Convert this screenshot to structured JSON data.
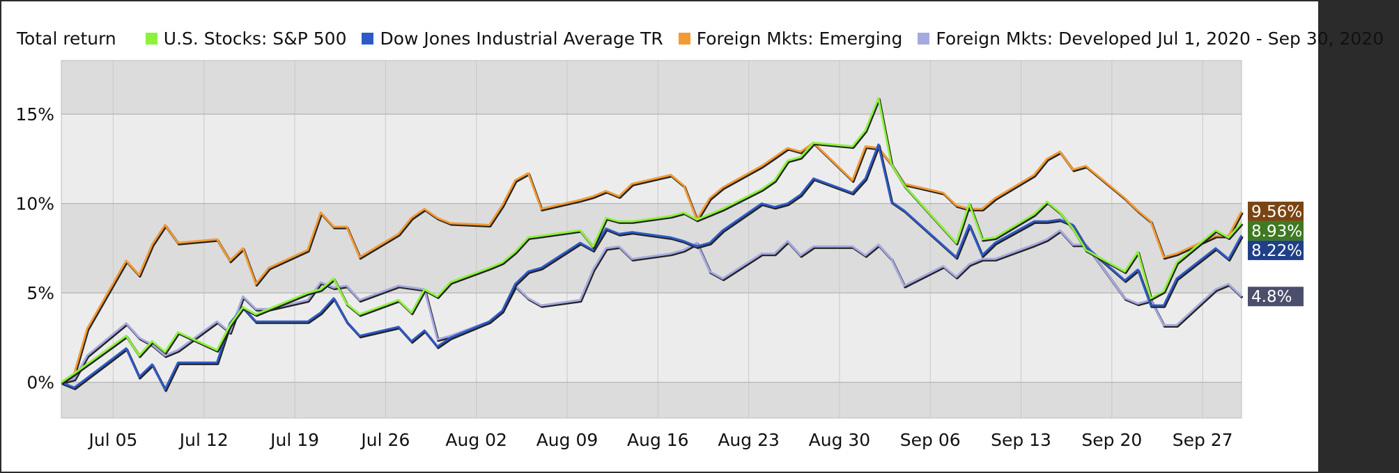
{
  "chart_data": {
    "type": "line",
    "title": "Total return",
    "date_range": "Jul 1, 2020 - Sep 30, 2020",
    "xlim": [
      "2020-07-01",
      "2020-09-30"
    ],
    "ylim": [
      -2,
      18
    ],
    "y_ticks": [
      0,
      5,
      10,
      15
    ],
    "y_tick_labels": [
      "0%",
      "5%",
      "10%",
      "15%"
    ],
    "x_tick_labels": [
      "Jul 05",
      "Jul 12",
      "Jul 19",
      "Jul 26",
      "Aug 02",
      "Aug 09",
      "Aug 16",
      "Aug 23",
      "Aug 30",
      "Sep 06",
      "Sep 13",
      "Sep 20",
      "Sep 27"
    ],
    "x_ticks": [
      "2020-07-05",
      "2020-07-12",
      "2020-07-19",
      "2020-07-26",
      "2020-08-02",
      "2020-08-09",
      "2020-08-16",
      "2020-08-23",
      "2020-08-30",
      "2020-09-06",
      "2020-09-13",
      "2020-09-20",
      "2020-09-27"
    ],
    "background_bands": "alternating grey every 5%",
    "grid": true,
    "legend_position": "top",
    "series": [
      {
        "name": "U.S. Stocks: S&P 500",
        "color": "#8ef23c",
        "end_label": "8.93%",
        "end_label_color": "#3f7a22",
        "x": [
          "2020-07-01",
          "2020-07-02",
          "2020-07-06",
          "2020-07-07",
          "2020-07-08",
          "2020-07-09",
          "2020-07-10",
          "2020-07-13",
          "2020-07-14",
          "2020-07-15",
          "2020-07-16",
          "2020-07-17",
          "2020-07-20",
          "2020-07-21",
          "2020-07-22",
          "2020-07-23",
          "2020-07-24",
          "2020-07-27",
          "2020-07-28",
          "2020-07-29",
          "2020-07-30",
          "2020-07-31",
          "2020-08-03",
          "2020-08-04",
          "2020-08-05",
          "2020-08-06",
          "2020-08-07",
          "2020-08-10",
          "2020-08-11",
          "2020-08-12",
          "2020-08-13",
          "2020-08-14",
          "2020-08-17",
          "2020-08-18",
          "2020-08-19",
          "2020-08-20",
          "2020-08-21",
          "2020-08-24",
          "2020-08-25",
          "2020-08-26",
          "2020-08-27",
          "2020-08-28",
          "2020-08-31",
          "2020-09-01",
          "2020-09-02",
          "2020-09-03",
          "2020-09-04",
          "2020-09-08",
          "2020-09-09",
          "2020-09-10",
          "2020-09-11",
          "2020-09-14",
          "2020-09-15",
          "2020-09-16",
          "2020-09-17",
          "2020-09-18",
          "2020-09-21",
          "2020-09-22",
          "2020-09-23",
          "2020-09-24",
          "2020-09-25",
          "2020-09-28",
          "2020-09-29",
          "2020-09-30"
        ],
        "values": [
          0,
          0.5,
          2.6,
          1.5,
          2.3,
          1.7,
          2.8,
          1.8,
          3.2,
          4.2,
          3.8,
          4.1,
          5.0,
          5.2,
          5.8,
          4.4,
          3.8,
          4.6,
          3.9,
          5.2,
          4.8,
          5.6,
          6.4,
          6.7,
          7.3,
          8.1,
          8.2,
          8.5,
          7.6,
          9.2,
          9.0,
          9.0,
          9.3,
          9.5,
          9.1,
          9.4,
          9.7,
          10.8,
          11.3,
          12.4,
          12.6,
          13.4,
          13.2,
          14.1,
          15.9,
          12.2,
          11.0,
          7.8,
          10.0,
          8.0,
          8.1,
          9.4,
          10.1,
          9.5,
          8.6,
          7.4,
          6.2,
          7.3,
          4.7,
          5.1,
          6.7,
          8.5,
          8.1,
          8.93
        ]
      },
      {
        "name": "Dow Jones Industrial Average TR",
        "color": "#2e59c8",
        "end_label": "8.22%",
        "end_label_color": "#1f3f87",
        "x": [
          "2020-07-01",
          "2020-07-02",
          "2020-07-06",
          "2020-07-07",
          "2020-07-08",
          "2020-07-09",
          "2020-07-10",
          "2020-07-13",
          "2020-07-14",
          "2020-07-15",
          "2020-07-16",
          "2020-07-17",
          "2020-07-20",
          "2020-07-21",
          "2020-07-22",
          "2020-07-23",
          "2020-07-24",
          "2020-07-27",
          "2020-07-28",
          "2020-07-29",
          "2020-07-30",
          "2020-07-31",
          "2020-08-03",
          "2020-08-04",
          "2020-08-05",
          "2020-08-06",
          "2020-08-07",
          "2020-08-10",
          "2020-08-11",
          "2020-08-12",
          "2020-08-13",
          "2020-08-14",
          "2020-08-17",
          "2020-08-18",
          "2020-08-19",
          "2020-08-20",
          "2020-08-21",
          "2020-08-24",
          "2020-08-25",
          "2020-08-26",
          "2020-08-27",
          "2020-08-28",
          "2020-08-31",
          "2020-09-01",
          "2020-09-02",
          "2020-09-03",
          "2020-09-04",
          "2020-09-08",
          "2020-09-09",
          "2020-09-10",
          "2020-09-11",
          "2020-09-14",
          "2020-09-15",
          "2020-09-16",
          "2020-09-17",
          "2020-09-18",
          "2020-09-21",
          "2020-09-22",
          "2020-09-23",
          "2020-09-24",
          "2020-09-25",
          "2020-09-28",
          "2020-09-29",
          "2020-09-30"
        ],
        "values": [
          0,
          -0.3,
          1.9,
          0.3,
          1.0,
          -0.4,
          1.1,
          1.1,
          3.3,
          4.2,
          3.4,
          3.4,
          3.4,
          3.9,
          4.7,
          3.4,
          2.6,
          3.1,
          2.3,
          2.9,
          2.0,
          2.5,
          3.4,
          4.0,
          5.5,
          6.2,
          6.4,
          7.8,
          7.4,
          8.6,
          8.3,
          8.4,
          8.1,
          7.9,
          7.6,
          7.8,
          8.5,
          10.0,
          9.8,
          10.0,
          10.5,
          11.4,
          10.6,
          11.4,
          13.3,
          10.1,
          9.6,
          7.0,
          8.8,
          7.1,
          7.8,
          9.0,
          9.0,
          9.1,
          8.8,
          7.6,
          5.7,
          6.3,
          4.3,
          4.3,
          5.8,
          7.5,
          6.9,
          8.22
        ]
      },
      {
        "name": "Foreign Mkts: Emerging",
        "color": "#f39a33",
        "end_label": "9.56%",
        "end_label_color": "#7b4513",
        "x": [
          "2020-07-01",
          "2020-07-02",
          "2020-07-03",
          "2020-07-06",
          "2020-07-07",
          "2020-07-08",
          "2020-07-09",
          "2020-07-10",
          "2020-07-13",
          "2020-07-14",
          "2020-07-15",
          "2020-07-16",
          "2020-07-17",
          "2020-07-20",
          "2020-07-21",
          "2020-07-22",
          "2020-07-23",
          "2020-07-24",
          "2020-07-27",
          "2020-07-28",
          "2020-07-29",
          "2020-07-30",
          "2020-07-31",
          "2020-08-03",
          "2020-08-04",
          "2020-08-05",
          "2020-08-06",
          "2020-08-07",
          "2020-08-10",
          "2020-08-11",
          "2020-08-12",
          "2020-08-13",
          "2020-08-14",
          "2020-08-17",
          "2020-08-18",
          "2020-08-19",
          "2020-08-20",
          "2020-08-21",
          "2020-08-24",
          "2020-08-25",
          "2020-08-26",
          "2020-08-27",
          "2020-08-28",
          "2020-08-31",
          "2020-09-01",
          "2020-09-02",
          "2020-09-03",
          "2020-09-04",
          "2020-09-07",
          "2020-09-08",
          "2020-09-09",
          "2020-09-10",
          "2020-09-11",
          "2020-09-14",
          "2020-09-15",
          "2020-09-16",
          "2020-09-17",
          "2020-09-18",
          "2020-09-21",
          "2020-09-22",
          "2020-09-23",
          "2020-09-24",
          "2020-09-25",
          "2020-09-28",
          "2020-09-29",
          "2020-09-30"
        ],
        "values": [
          0,
          0.5,
          3.0,
          6.8,
          6.0,
          7.7,
          8.8,
          7.8,
          8.0,
          6.8,
          7.5,
          5.5,
          6.4,
          7.4,
          9.5,
          8.7,
          8.7,
          7.0,
          8.3,
          9.2,
          9.7,
          9.2,
          8.9,
          8.8,
          9.9,
          11.3,
          11.7,
          9.7,
          10.2,
          10.4,
          10.7,
          10.4,
          11.1,
          11.6,
          11.0,
          9.1,
          10.3,
          10.9,
          12.1,
          12.6,
          13.1,
          12.9,
          13.4,
          11.3,
          13.2,
          13.1,
          12.2,
          11.1,
          10.6,
          9.9,
          9.7,
          9.7,
          10.3,
          11.6,
          12.5,
          12.9,
          11.9,
          12.1,
          10.3,
          9.6,
          9.0,
          7.0,
          7.2,
          8.2,
          8.2,
          9.56
        ]
      },
      {
        "name": "Foreign Mkts: Developed",
        "color": "#a6a9e0",
        "end_label": "4.8%",
        "end_label_color": "#4c4f6b",
        "x": [
          "2020-07-01",
          "2020-07-02",
          "2020-07-03",
          "2020-07-06",
          "2020-07-07",
          "2020-07-08",
          "2020-07-09",
          "2020-07-10",
          "2020-07-13",
          "2020-07-14",
          "2020-07-15",
          "2020-07-16",
          "2020-07-17",
          "2020-07-20",
          "2020-07-21",
          "2020-07-22",
          "2020-07-23",
          "2020-07-24",
          "2020-07-27",
          "2020-07-28",
          "2020-07-29",
          "2020-07-30",
          "2020-07-31",
          "2020-08-03",
          "2020-08-04",
          "2020-08-05",
          "2020-08-06",
          "2020-08-07",
          "2020-08-10",
          "2020-08-11",
          "2020-08-12",
          "2020-08-13",
          "2020-08-14",
          "2020-08-17",
          "2020-08-18",
          "2020-08-19",
          "2020-08-20",
          "2020-08-21",
          "2020-08-24",
          "2020-08-25",
          "2020-08-26",
          "2020-08-27",
          "2020-08-28",
          "2020-08-31",
          "2020-09-01",
          "2020-09-02",
          "2020-09-03",
          "2020-09-04",
          "2020-09-07",
          "2020-09-08",
          "2020-09-09",
          "2020-09-10",
          "2020-09-11",
          "2020-09-14",
          "2020-09-15",
          "2020-09-16",
          "2020-09-17",
          "2020-09-18",
          "2020-09-21",
          "2020-09-22",
          "2020-09-23",
          "2020-09-24",
          "2020-09-25",
          "2020-09-28",
          "2020-09-29",
          "2020-09-30"
        ],
        "values": [
          0,
          0.2,
          1.5,
          3.3,
          2.5,
          2.1,
          1.5,
          1.8,
          3.4,
          2.8,
          4.8,
          4.1,
          4.1,
          4.6,
          5.6,
          5.3,
          5.4,
          4.6,
          5.4,
          5.3,
          5.2,
          2.4,
          2.6,
          3.4,
          4.0,
          5.4,
          4.7,
          4.3,
          4.6,
          6.3,
          7.5,
          7.6,
          6.9,
          7.2,
          7.4,
          7.8,
          6.2,
          5.8,
          7.2,
          7.2,
          7.9,
          7.1,
          7.6,
          7.6,
          7.1,
          7.7,
          6.9,
          5.4,
          6.5,
          5.9,
          6.6,
          6.9,
          6.9,
          7.7,
          8.0,
          8.5,
          7.7,
          7.7,
          4.7,
          4.4,
          4.6,
          3.2,
          3.2,
          5.2,
          5.5,
          4.8
        ]
      }
    ]
  }
}
